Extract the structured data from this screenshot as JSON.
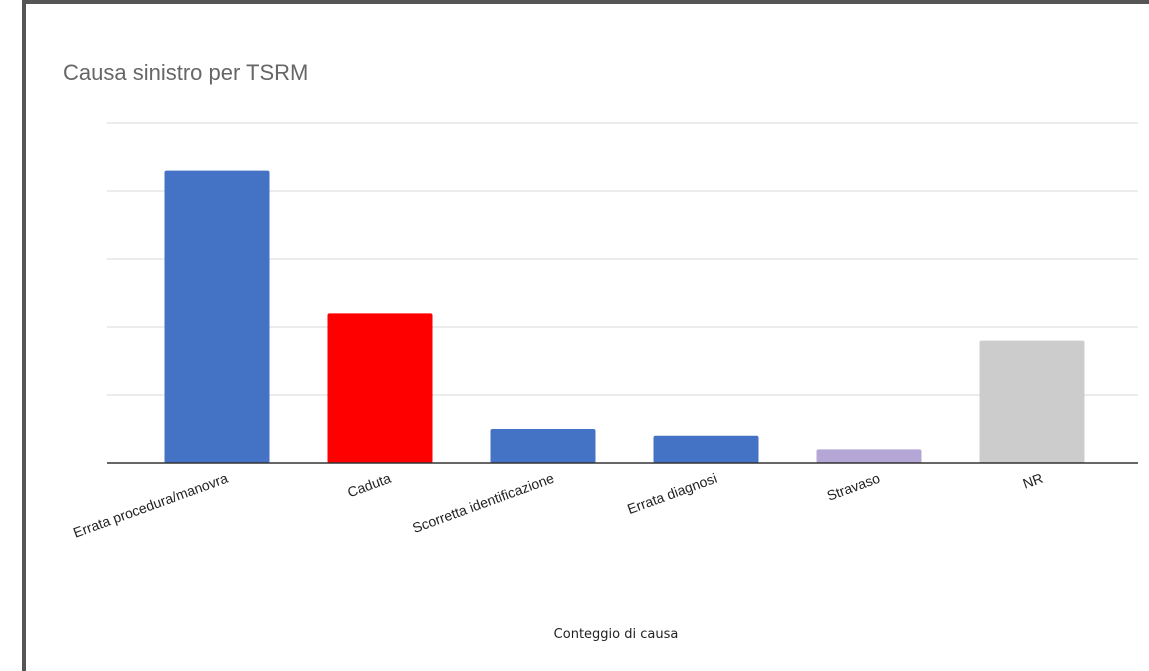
{
  "chart_data": {
    "type": "bar",
    "title": "Causa sinistro per TSRM",
    "xlabel": "Conteggio di causa",
    "ylabel": "",
    "categories": [
      "Errata procedura/manovra",
      "Caduta",
      "Scorretta identificazione",
      "Errata diagnosi",
      "Stravaso",
      "NR"
    ],
    "values": [
      21.5,
      11.0,
      2.5,
      2.0,
      1.0,
      9.0
    ],
    "colors": [
      "#4472c4",
      "#ff0000",
      "#4472c4",
      "#4472c4",
      "#b4a7d6",
      "#cccccc"
    ],
    "ylim": [
      0,
      25
    ],
    "grid": true
  }
}
